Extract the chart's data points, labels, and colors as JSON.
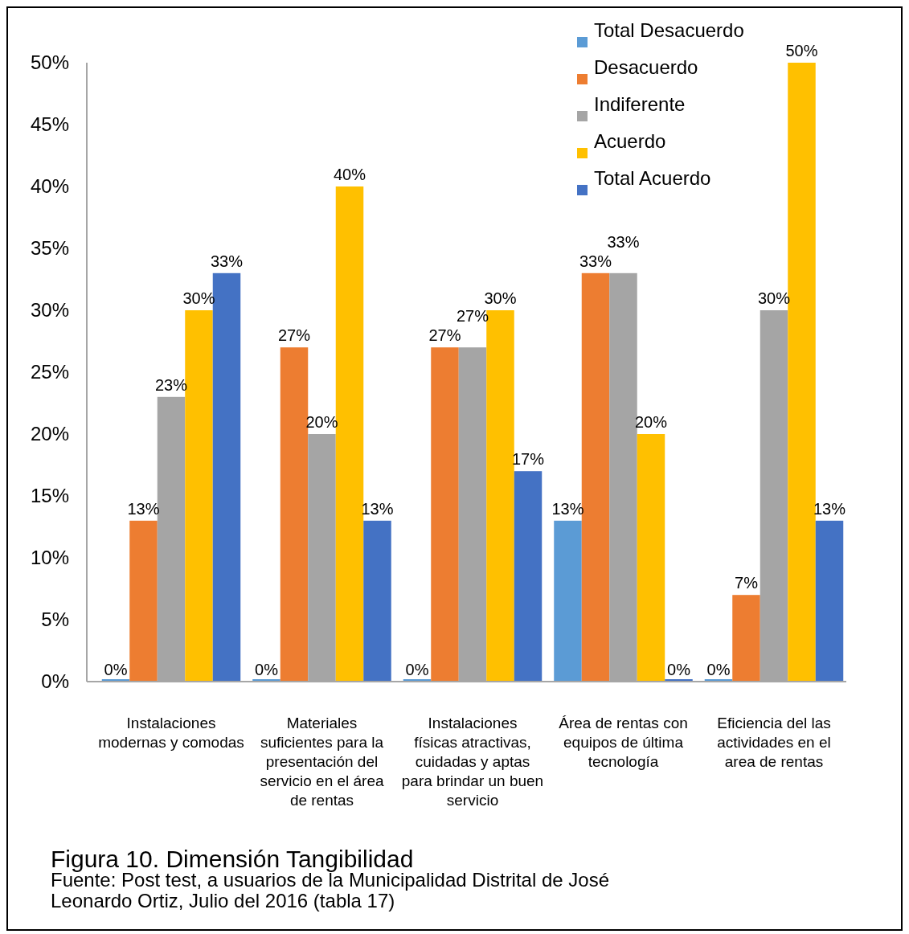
{
  "chart_data": {
    "type": "bar",
    "title": "Figura 10. Dimensión Tangibilidad",
    "annotations": [
      "Fuente: Post test, a usuarios de la Municipalidad Distrital de José Leonardo Ortiz, Julio del 2016 (tabla 17)"
    ],
    "categories": [
      "Instalaciones modernas y comodas",
      "Materiales suficientes para la presentación del servicio en el área de rentas",
      "Instalaciones físicas atractivas, cuidadas y aptas para brindar un buen servicio",
      "Área de rentas con equipos de última tecnología",
      "Eficiencia del las actividades en el area de rentas"
    ],
    "series": [
      {
        "name": "Total Desacuerdo",
        "color": "#5b9bd5",
        "values": [
          0,
          0,
          0,
          13,
          0
        ],
        "value_labels": [
          "0%",
          "0%",
          "0%",
          "13%",
          "0%"
        ]
      },
      {
        "name": "Desacuerdo",
        "color": "#ed7d31",
        "values": [
          13,
          27,
          27,
          33,
          7
        ],
        "value_labels": [
          "13%",
          "27%",
          "27%",
          "33%",
          "7%"
        ]
      },
      {
        "name": "Indiferente",
        "color": "#a5a5a5",
        "values": [
          23,
          20,
          27,
          33,
          30
        ],
        "value_labels": [
          "23%",
          "20%",
          "27%",
          "33%",
          "30%"
        ]
      },
      {
        "name": "Acuerdo",
        "color": "#ffc000",
        "values": [
          30,
          40,
          30,
          20,
          50
        ],
        "value_labels": [
          "30%",
          "40%",
          "30%",
          "20%",
          "50%"
        ]
      },
      {
        "name": "Total Acuerdo",
        "color": "#4472c4",
        "values": [
          33,
          13,
          17,
          0,
          13
        ],
        "value_labels": [
          "33%",
          "13%",
          "17%",
          "0%",
          "13%"
        ]
      }
    ],
    "ylim": [
      0,
      50
    ],
    "yticks": [
      {
        "value": 0,
        "label": "0%"
      },
      {
        "value": 5,
        "label": "5%"
      },
      {
        "value": 10,
        "label": "10%"
      },
      {
        "value": 15,
        "label": "15%"
      },
      {
        "value": 20,
        "label": "20%"
      },
      {
        "value": 25,
        "label": "25%"
      },
      {
        "value": 30,
        "label": "30%"
      },
      {
        "value": 35,
        "label": "35%"
      },
      {
        "value": 40,
        "label": "40%"
      },
      {
        "value": 45,
        "label": "45%"
      },
      {
        "value": 50,
        "label": "50%"
      }
    ],
    "grid": false,
    "legend": "top right"
  }
}
